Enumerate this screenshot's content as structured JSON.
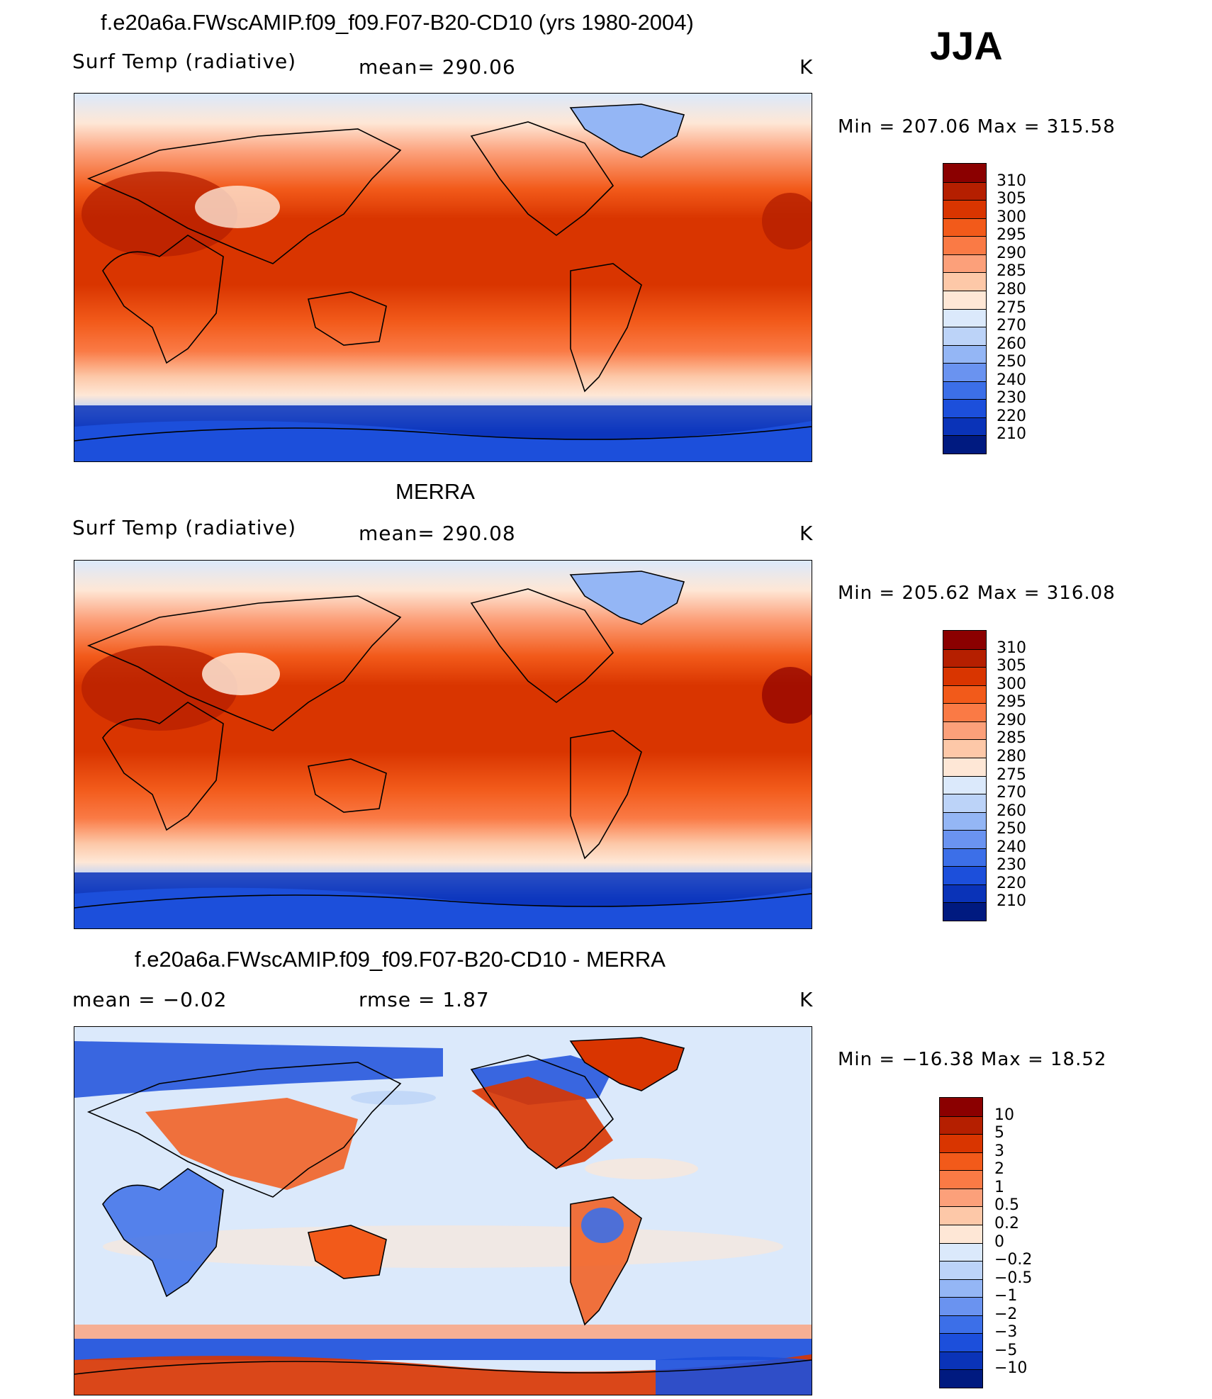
{
  "season": "JJA",
  "panels": [
    {
      "title": "f.e20a6a.FWscAMIP.f09_f09.F07-B20-CD10 (yrs 1980-2004)",
      "left_label": "Surf Temp (radiative)",
      "center_label": "mean=  290.06",
      "units": "K",
      "minmax": "Min  =  207.06  Max  =  315.58"
    },
    {
      "title": "MERRA",
      "left_label": "Surf Temp (radiative)",
      "center_label": "mean=  290.08",
      "units": "K",
      "minmax": "Min  =  205.62  Max  =  316.08"
    },
    {
      "title": "f.e20a6a.FWscAMIP.f09_f09.F07-B20-CD10 - MERRA",
      "left_label": "mean  =    −0.02",
      "center_label": "rmse  =     1.87",
      "units": "K",
      "minmax": "Min  =  −16.38  Max  =    18.52"
    }
  ],
  "chart_data": [
    {
      "type": "heatmap",
      "title": "f.e20a6a.FWscAMIP.f09_f09.F07-B20-CD10 (yrs 1980-2004)",
      "variable": "Surf Temp (radiative)",
      "units": "K",
      "mean": 290.06,
      "min": 207.06,
      "max": 315.58,
      "colorbar_levels": [
        310,
        305,
        300,
        295,
        290,
        285,
        280,
        275,
        270,
        260,
        250,
        240,
        230,
        220,
        210
      ],
      "colorbar_colors": [
        "#8b0000",
        "#b51f00",
        "#d93500",
        "#f25a1a",
        "#fa7a45",
        "#fca07a",
        "#fdc8a8",
        "#fee7d6",
        "#dbe9fb",
        "#bcd3f8",
        "#94b6f5",
        "#6a93f0",
        "#3c6fe8",
        "#1c4fdb",
        "#0a33b8",
        "#001a80"
      ]
    },
    {
      "type": "heatmap",
      "title": "MERRA",
      "variable": "Surf Temp (radiative)",
      "units": "K",
      "mean": 290.08,
      "min": 205.62,
      "max": 316.08,
      "colorbar_levels": [
        310,
        305,
        300,
        295,
        290,
        285,
        280,
        275,
        270,
        260,
        250,
        240,
        230,
        220,
        210
      ],
      "colorbar_colors": [
        "#8b0000",
        "#b51f00",
        "#d93500",
        "#f25a1a",
        "#fa7a45",
        "#fca07a",
        "#fdc8a8",
        "#fee7d6",
        "#dbe9fb",
        "#bcd3f8",
        "#94b6f5",
        "#6a93f0",
        "#3c6fe8",
        "#1c4fdb",
        "#0a33b8",
        "#001a80"
      ]
    },
    {
      "type": "heatmap",
      "title": "f.e20a6a.FWscAMIP.f09_f09.F07-B20-CD10 - MERRA",
      "units": "K",
      "mean": -0.02,
      "rmse": 1.87,
      "min": -16.38,
      "max": 18.52,
      "colorbar_levels": [
        "10",
        "5",
        "3",
        "2",
        "1",
        "0.5",
        "0.2",
        "0",
        "−0.2",
        "−0.5",
        "−1",
        "−2",
        "−3",
        "−5",
        "−10"
      ],
      "colorbar_colors": [
        "#8b0000",
        "#b51f00",
        "#d93500",
        "#f25a1a",
        "#fa7a45",
        "#fca07a",
        "#fdc8a8",
        "#fee7d6",
        "#dbe9fb",
        "#bcd3f8",
        "#94b6f5",
        "#6a93f0",
        "#3c6fe8",
        "#1c4fdb",
        "#0a33b8",
        "#001a80"
      ]
    }
  ]
}
